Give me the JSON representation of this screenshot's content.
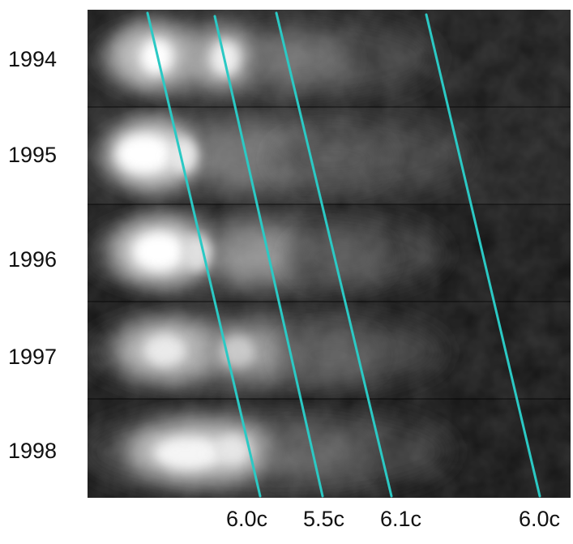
{
  "epochs": [
    "1994",
    "1995",
    "1996",
    "1997",
    "1998"
  ],
  "speeds": [
    "6.0c",
    "5.5c",
    "6.1c",
    "6.0c"
  ],
  "colors": {
    "fiducial_line": "#2bc9c4",
    "background": "#000000",
    "page": "#ffffff"
  }
}
